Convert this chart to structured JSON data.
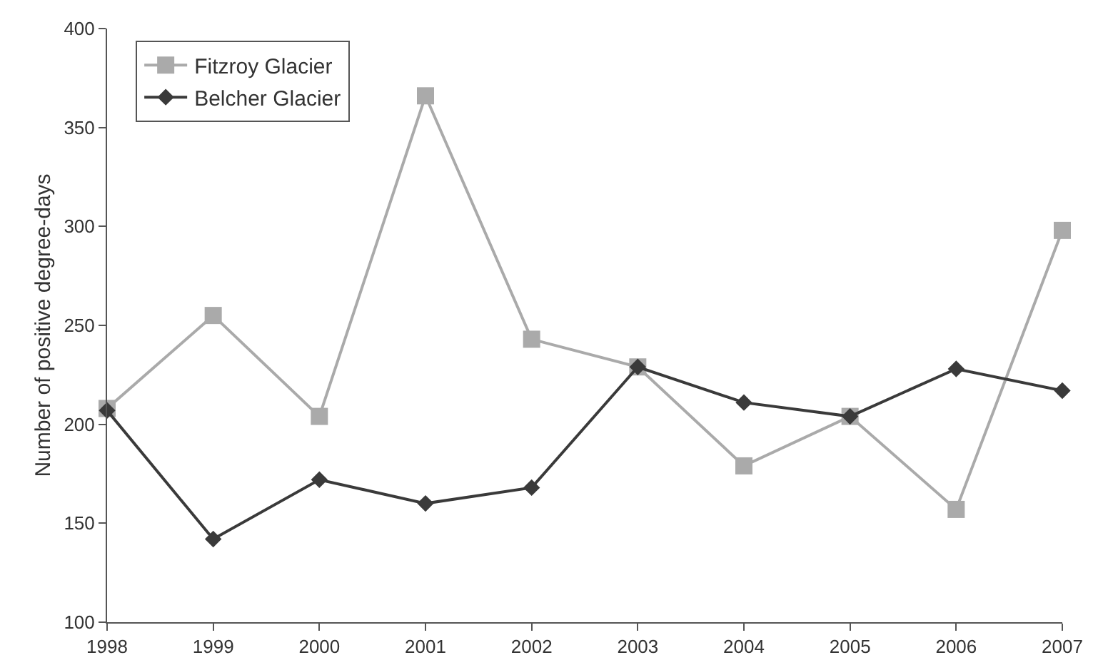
{
  "chart_data": {
    "type": "line",
    "ylabel": "Number of positive degree-days",
    "x": [
      1998,
      1999,
      2000,
      2001,
      2002,
      2003,
      2004,
      2005,
      2006,
      2007
    ],
    "series": [
      {
        "name": "Fitzroy Glacier",
        "color": "#aaaaaa",
        "marker": "square",
        "values": [
          208,
          255,
          204,
          366,
          243,
          229,
          179,
          204,
          157,
          298
        ]
      },
      {
        "name": "Belcher Glacier",
        "color": "#3a3a3a",
        "marker": "diamond",
        "values": [
          207,
          142,
          172,
          160,
          168,
          229,
          211,
          204,
          228,
          217
        ]
      }
    ],
    "xlim": [
      1998,
      2007
    ],
    "xticks": [
      1998,
      1999,
      2000,
      2001,
      2002,
      2003,
      2004,
      2005,
      2006,
      2007
    ],
    "ylim": [
      100,
      400
    ],
    "yticks": [
      100,
      150,
      200,
      250,
      300,
      350,
      400
    ],
    "grid": false,
    "legend": "top left",
    "line_style": "solid"
  }
}
